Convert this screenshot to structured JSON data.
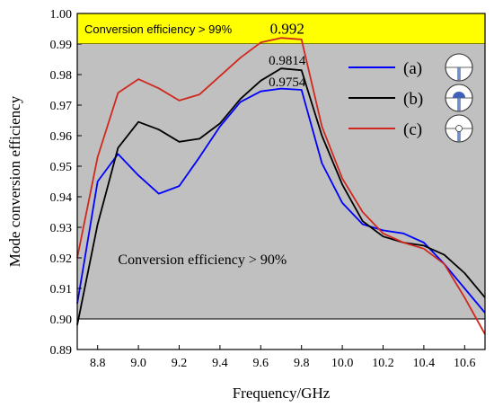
{
  "chart_data": {
    "type": "line",
    "xlabel": "Frequency/GHz",
    "ylabel": "Mode conversion efficiency",
    "xlim": [
      8.7,
      10.7
    ],
    "ylim": [
      0.89,
      1.0
    ],
    "x_ticks": [
      "8.8",
      "9.0",
      "9.2",
      "9.4",
      "9.6",
      "9.8",
      "10.0",
      "10.2",
      "10.4",
      "10.6"
    ],
    "y_ticks": [
      "0.89",
      "0.90",
      "0.91",
      "0.92",
      "0.93",
      "0.94",
      "0.95",
      "0.96",
      "0.97",
      "0.98",
      "0.99",
      "1.00"
    ],
    "bands": [
      {
        "from": 0.99,
        "to": 1.0,
        "color": "#ffff00",
        "label": "Conversion efficiency > 99%"
      },
      {
        "from": 0.9,
        "to": 0.99,
        "color": "#c0c0c0",
        "label": "Conversion efficiency > 90%"
      }
    ],
    "series": [
      {
        "name": "(a)",
        "color": "#0000ff",
        "x": [
          8.7,
          8.8,
          8.9,
          9.0,
          9.1,
          9.2,
          9.3,
          9.4,
          9.5,
          9.6,
          9.7,
          9.8,
          9.9,
          10.0,
          10.1,
          10.2,
          10.3,
          10.4,
          10.5,
          10.6,
          10.7
        ],
        "y": [
          0.905,
          0.945,
          0.954,
          0.947,
          0.941,
          0.9435,
          0.953,
          0.963,
          0.971,
          0.9745,
          0.9754,
          0.975,
          0.951,
          0.938,
          0.931,
          0.929,
          0.928,
          0.925,
          0.918,
          0.91,
          0.902
        ]
      },
      {
        "name": "(b)",
        "color": "#000000",
        "x": [
          8.7,
          8.8,
          8.9,
          9.0,
          9.1,
          9.2,
          9.3,
          9.4,
          9.5,
          9.6,
          9.7,
          9.8,
          9.9,
          10.0,
          10.1,
          10.2,
          10.3,
          10.4,
          10.5,
          10.6,
          10.7
        ],
        "y": [
          0.898,
          0.931,
          0.956,
          0.9645,
          0.962,
          0.958,
          0.959,
          0.964,
          0.972,
          0.978,
          0.982,
          0.9814,
          0.96,
          0.944,
          0.932,
          0.927,
          0.925,
          0.924,
          0.921,
          0.915,
          0.907
        ]
      },
      {
        "name": "(c)",
        "color": "#d0281e",
        "x": [
          8.7,
          8.8,
          8.9,
          9.0,
          9.1,
          9.2,
          9.3,
          9.4,
          9.5,
          9.6,
          9.7,
          9.8,
          9.9,
          10.0,
          10.1,
          10.2,
          10.3,
          10.4,
          10.5,
          10.6,
          10.7
        ],
        "y": [
          0.92,
          0.953,
          0.974,
          0.9785,
          0.9755,
          0.9715,
          0.9735,
          0.9795,
          0.9855,
          0.9905,
          0.992,
          0.9915,
          0.963,
          0.946,
          0.935,
          0.928,
          0.925,
          0.923,
          0.918,
          0.907,
          0.895
        ]
      }
    ],
    "annotations": [
      {
        "text": "0.992",
        "x": 9.73,
        "y": 0.9925
      },
      {
        "text": "0.9814",
        "x": 9.73,
        "y": 0.982
      },
      {
        "text": "0.9754",
        "x": 9.73,
        "y": 0.975
      }
    ],
    "legend": {
      "placement": "top-right",
      "entries": [
        "(a)",
        "(b)",
        "(c)"
      ],
      "icons": [
        "circle-with-stub-icon",
        "circle-with-filled-cap-icon",
        "circle-with-dot-icon"
      ]
    }
  }
}
